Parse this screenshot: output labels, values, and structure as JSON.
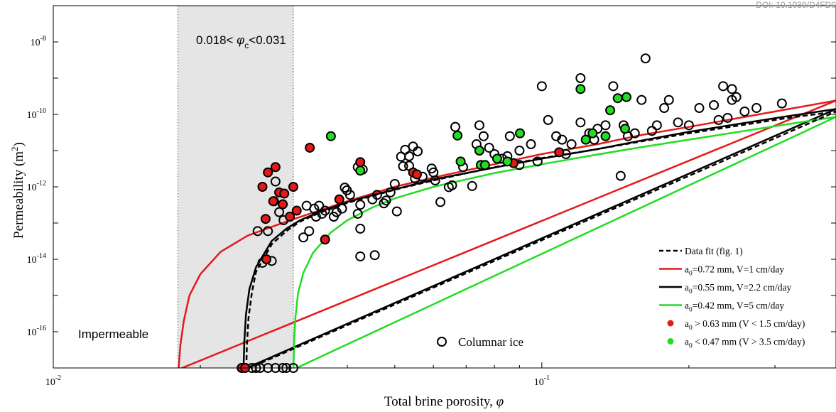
{
  "watermark": "DOI: 10.1039/D4FD0",
  "chart_data": {
    "type": "scatter",
    "xlabel_text": "Total brine porosity, ",
    "xlabel_symbol": "φ",
    "ylabel_text": "Permeability (m",
    "ylabel_sup": "2",
    "ylabel_close": ")",
    "x_scale": "log",
    "y_scale": "log",
    "xlim": [
      0.01,
      0.4
    ],
    "ylim": [
      1e-17,
      1e-07
    ],
    "x_ticks": [
      {
        "value": 0.01,
        "base": "10",
        "exp": "-2"
      },
      {
        "value": 0.1,
        "base": "10",
        "exp": "-1"
      }
    ],
    "y_ticks": [
      {
        "value": 1e-16,
        "base": "10",
        "exp": "-16"
      },
      {
        "value": 1e-14,
        "base": "10",
        "exp": "-14"
      },
      {
        "value": 1e-12,
        "base": "10",
        "exp": "-12"
      },
      {
        "value": 1e-10,
        "base": "10",
        "exp": "-10"
      },
      {
        "value": 1e-08,
        "base": "10",
        "exp": "-8"
      }
    ],
    "grid": false,
    "region": {
      "x_range": [
        0.018,
        0.031
      ],
      "label_pre": "0.018< ",
      "label_sym": "φ",
      "label_sub": "c",
      "label_post": "<0.031",
      "color": "#e5e5e5"
    },
    "impermeable_label": "Impermeable",
    "columnar_label": "Columnar ice",
    "legend": {
      "placement": "bottom-right",
      "entries": [
        {
          "kind": "dash",
          "color": "#000000",
          "text": "Data fit (fig. 1)"
        },
        {
          "kind": "line",
          "color": "#e31a1c",
          "pre": "a",
          "sub": "0",
          "text": "=0.72 mm, V=1 cm/day"
        },
        {
          "kind": "line",
          "color": "#000000",
          "pre": "a",
          "sub": "0",
          "text": "=0.55 mm, V=2.2 cm/day"
        },
        {
          "kind": "line",
          "color": "#22dd22",
          "pre": "a",
          "sub": "0",
          "text": "=0.42 mm, V=5 cm/day"
        },
        {
          "kind": "dot",
          "color": "#e31a1c",
          "pre": "a",
          "sub": "0",
          "text": " > 0.63 mm (V < 1.5 cm/day)"
        },
        {
          "kind": "dot",
          "color": "#22dd22",
          "pre": "a",
          "sub": "0",
          "text": " < 0.47 mm (V > 3.5 cm/day)"
        }
      ]
    },
    "model_curves": [
      {
        "name": "a0=0.72 mm, V=1 cm/day",
        "color": "#e31a1c",
        "dashed": false,
        "phi_c": 0.018,
        "x": [
          0.01806,
          0.0182,
          0.0185,
          0.019,
          0.02,
          0.022,
          0.025,
          0.03,
          0.035,
          0.04,
          0.05,
          0.06,
          0.08,
          0.1,
          0.13,
          0.16,
          0.2,
          0.26,
          0.32,
          0.4
        ],
        "y": [
          1e-17,
          4.2e-17,
          2e-16,
          1e-15,
          3.9e-15,
          1.6e-14,
          4.5e-14,
          1.1e-13,
          2.2e-13,
          4e-13,
          1e-12,
          1.8e-12,
          4.2e-12,
          8e-12,
          1.5e-11,
          2.7e-11,
          4.5e-11,
          8.5e-11,
          1.4e-10,
          2.4e-10
        ]
      },
      {
        "name": "a0=0.55 mm, V=2.2 cm/day",
        "color": "#000000",
        "dashed": false,
        "phi_c": 0.0245,
        "x": [
          0.02452,
          0.0246,
          0.0248,
          0.0252,
          0.026,
          0.028,
          0.03,
          0.032,
          0.035,
          0.04,
          0.05,
          0.06,
          0.08,
          0.1,
          0.13,
          0.16,
          0.2,
          0.26,
          0.32,
          0.4
        ],
        "y": [
          1e-17,
          5e-17,
          3e-16,
          1.5e-15,
          6e-15,
          3.2e-14,
          7e-14,
          1.2e-13,
          2e-13,
          3.8e-13,
          8.5e-13,
          1.6e-12,
          3.4e-12,
          6e-12,
          1.1e-11,
          1.9e-11,
          3.3e-11,
          5.8e-11,
          9e-11,
          1.4e-10
        ]
      },
      {
        "name": "Data fit (fig. 1)",
        "color": "#000000",
        "dashed": true,
        "phi_c": 0.0248,
        "x": [
          0.02484,
          0.0249,
          0.0251,
          0.0255,
          0.026,
          0.028,
          0.03,
          0.032,
          0.035,
          0.04,
          0.05,
          0.06,
          0.08,
          0.1,
          0.13,
          0.16,
          0.2,
          0.26,
          0.32,
          0.4
        ],
        "y": [
          1e-17,
          4e-17,
          2.4e-16,
          1.2e-15,
          4.5e-15,
          2.6e-14,
          6e-14,
          1.1e-13,
          1.9e-13,
          3.6e-13,
          8.3e-13,
          1.5e-12,
          3.5e-12,
          6.2e-12,
          1.1e-11,
          1.8e-11,
          3e-11,
          5.2e-11,
          8e-11,
          1.2e-10
        ]
      },
      {
        "name": "a0=0.42 mm, V=5 cm/day",
        "color": "#22dd22",
        "dashed": false,
        "phi_c": 0.031,
        "x": [
          0.03102,
          0.0311,
          0.0313,
          0.0317,
          0.0325,
          0.034,
          0.037,
          0.04,
          0.045,
          0.05,
          0.06,
          0.08,
          0.1,
          0.13,
          0.16,
          0.2,
          0.26,
          0.32,
          0.4
        ],
        "y": [
          1e-17,
          4.5e-17,
          2.5e-16,
          1.2e-15,
          4.2e-15,
          1.5e-14,
          5.5e-14,
          1.2e-13,
          2.7e-13,
          4.8e-13,
          1e-12,
          2.4e-12,
          4.2e-12,
          7.8e-12,
          1.25e-11,
          2e-11,
          3.5e-11,
          5.4e-11,
          8.5e-11
        ]
      }
    ],
    "open_circles": [
      [
        0.0255,
        1e-17
      ],
      [
        0.026,
        1e-17
      ],
      [
        0.0265,
        1e-17
      ],
      [
        0.0275,
        1e-17
      ],
      [
        0.0285,
        1e-17
      ],
      [
        0.0295,
        1e-17
      ],
      [
        0.03,
        1e-17
      ],
      [
        0.031,
        1e-17
      ],
      [
        0.0262,
        6e-14
      ],
      [
        0.0268,
        8e-15
      ],
      [
        0.0275,
        6e-14
      ],
      [
        0.028,
        9e-15
      ],
      [
        0.0283,
        4e-13
      ],
      [
        0.029,
        2e-13
      ],
      [
        0.0296,
        1.2e-13
      ],
      [
        0.0325,
        4e-14
      ],
      [
        0.0334,
        6e-14
      ],
      [
        0.0345,
        1.5e-13
      ],
      [
        0.0355,
        1.8e-13
      ],
      [
        0.0342,
        2.5e-13
      ],
      [
        0.035,
        3e-13
      ],
      [
        0.036,
        2.2e-13
      ],
      [
        0.0375,
        1.5e-13
      ],
      [
        0.039,
        2.5e-13
      ],
      [
        0.0395,
        9.5e-13
      ],
      [
        0.0405,
        6e-13
      ],
      [
        0.042,
        3.5e-12
      ],
      [
        0.043,
        3e-12
      ],
      [
        0.0425,
        1.2e-14
      ],
      [
        0.0455,
        1.3e-14
      ],
      [
        0.0425,
        7e-14
      ],
      [
        0.042,
        1.8e-13
      ],
      [
        0.0425,
        3.2e-13
      ],
      [
        0.045,
        4.5e-13
      ],
      [
        0.046,
        6e-13
      ],
      [
        0.0475,
        3.5e-13
      ],
      [
        0.048,
        4.2e-13
      ],
      [
        0.049,
        7e-13
      ],
      [
        0.05,
        1.2e-12
      ],
      [
        0.0505,
        2.1e-13
      ],
      [
        0.052,
        3.7e-12
      ],
      [
        0.0535,
        3.8e-12
      ],
      [
        0.055,
        1.7e-12
      ],
      [
        0.0515,
        6.8e-12
      ],
      [
        0.0525,
        1.05e-11
      ],
      [
        0.0535,
        7e-12
      ],
      [
        0.0545,
        1.3e-11
      ],
      [
        0.0557,
        9.5e-12
      ],
      [
        0.057,
        1.9e-12
      ],
      [
        0.0595,
        3.2e-12
      ],
      [
        0.06,
        2.5e-12
      ],
      [
        0.0605,
        1.5e-12
      ],
      [
        0.062,
        3.8e-13
      ],
      [
        0.0645,
        9.8e-13
      ],
      [
        0.0655,
        1.1e-12
      ],
      [
        0.0665,
        4.5e-11
      ],
      [
        0.069,
        3.5e-12
      ],
      [
        0.072,
        1.05e-12
      ],
      [
        0.0735,
        1.5e-11
      ],
      [
        0.0745,
        5e-11
      ],
      [
        0.076,
        2.5e-11
      ],
      [
        0.078,
        1.2e-11
      ],
      [
        0.08,
        8e-12
      ],
      [
        0.083,
        6e-12
      ],
      [
        0.086,
        2.5e-11
      ],
      [
        0.09,
        4e-12
      ],
      [
        0.095,
        1.5e-11
      ],
      [
        0.098,
        5e-12
      ],
      [
        0.1,
        6e-10
      ],
      [
        0.103,
        7e-11
      ],
      [
        0.107,
        2.5e-11
      ],
      [
        0.112,
        8e-12
      ],
      [
        0.115,
        1.5e-11
      ],
      [
        0.12,
        1e-09
      ],
      [
        0.125,
        3e-11
      ],
      [
        0.128,
        2e-11
      ],
      [
        0.13,
        4e-11
      ],
      [
        0.135,
        5e-11
      ],
      [
        0.14,
        6e-10
      ],
      [
        0.145,
        2e-12
      ],
      [
        0.147,
        5e-11
      ],
      [
        0.15,
        2.5e-11
      ],
      [
        0.155,
        3e-11
      ],
      [
        0.16,
        2.5e-10
      ],
      [
        0.163,
        3.5e-09
      ],
      [
        0.168,
        3.5e-11
      ],
      [
        0.172,
        5e-11
      ],
      [
        0.178,
        1.5e-10
      ],
      [
        0.182,
        2.5e-10
      ],
      [
        0.19,
        6e-11
      ],
      [
        0.2,
        5e-11
      ],
      [
        0.21,
        1.5e-10
      ],
      [
        0.225,
        1.8e-10
      ],
      [
        0.23,
        7e-11
      ],
      [
        0.235,
        6e-10
      ],
      [
        0.245,
        5e-10
      ],
      [
        0.25,
        3e-10
      ],
      [
        0.26,
        1.2e-10
      ],
      [
        0.275,
        1.5e-10
      ],
      [
        0.31,
        2e-10
      ],
      [
        0.245,
        2.5e-10
      ],
      [
        0.24,
        8e-11
      ],
      [
        0.12,
        6e-11
      ],
      [
        0.11,
        2e-11
      ],
      [
        0.09,
        1e-11
      ],
      [
        0.085,
        7e-12
      ],
      [
        0.038,
        2e-13
      ],
      [
        0.0399,
        8e-13
      ],
      [
        0.033,
        3e-13
      ],
      [
        0.0285,
        1.4e-12
      ]
    ],
    "red_points": [
      [
        0.0243,
        1e-17
      ],
      [
        0.0247,
        1e-17
      ],
      [
        0.0268,
        1e-12
      ],
      [
        0.0275,
        2.5e-12
      ],
      [
        0.0285,
        3.5e-12
      ],
      [
        0.0282,
        4e-13
      ],
      [
        0.029,
        7e-13
      ],
      [
        0.0297,
        6.5e-13
      ],
      [
        0.0295,
        3.3e-13
      ],
      [
        0.0305,
        1.5e-13
      ],
      [
        0.031,
        1e-12
      ],
      [
        0.0315,
        2.2e-13
      ],
      [
        0.0272,
        1.3e-13
      ],
      [
        0.0273,
        1e-14
      ],
      [
        0.0335,
        1.2e-11
      ],
      [
        0.036,
        3.5e-14
      ],
      [
        0.0385,
        4.5e-13
      ],
      [
        0.0425,
        4.8e-12
      ],
      [
        0.0545,
        2.5e-12
      ],
      [
        0.0555,
        2.2e-12
      ],
      [
        0.0875,
        4.5e-12
      ],
      [
        0.1085,
        9e-12
      ]
    ],
    "green_points": [
      [
        0.037,
        2.5e-11
      ],
      [
        0.0425,
        2.8e-12
      ],
      [
        0.0672,
        2.6e-11
      ],
      [
        0.0682,
        5e-12
      ],
      [
        0.0745,
        1e-11
      ],
      [
        0.075,
        4e-12
      ],
      [
        0.0765,
        4e-12
      ],
      [
        0.081,
        6e-12
      ],
      [
        0.085,
        5e-12
      ],
      [
        0.0902,
        3e-11
      ],
      [
        0.12,
        5e-10
      ],
      [
        0.123,
        2e-11
      ],
      [
        0.127,
        3e-11
      ],
      [
        0.138,
        1.3e-10
      ],
      [
        0.143,
        2.8e-10
      ],
      [
        0.148,
        4e-11
      ],
      [
        0.149,
        3e-10
      ],
      [
        0.135,
        2.5e-11
      ]
    ]
  }
}
